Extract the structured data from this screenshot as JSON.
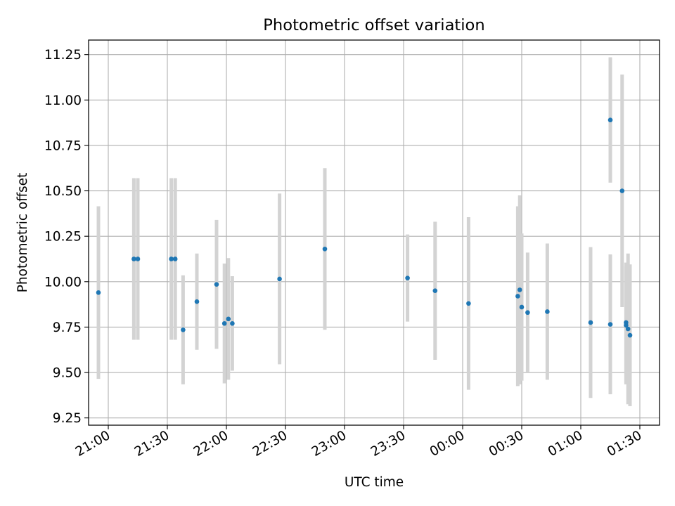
{
  "chart_data": {
    "type": "scatter",
    "title": "Photometric offset variation",
    "xlabel": "UTC time",
    "ylabel": "Photometric offset",
    "xlim": [
      "20:50",
      "01:40"
    ],
    "ylim": [
      9.21,
      11.33
    ],
    "x_ticks": [
      "21:00",
      "21:30",
      "22:00",
      "22:30",
      "23:00",
      "23:30",
      "00:00",
      "00:30",
      "01:00",
      "01:30"
    ],
    "y_ticks": [
      "9.25",
      "9.50",
      "9.75",
      "10.00",
      "10.25",
      "10.50",
      "10.75",
      "11.00",
      "11.25"
    ],
    "grid": true,
    "point_color": "#1f77b4",
    "errorbar_color": "#d3d3d3",
    "series": [
      {
        "points": [
          {
            "time": "20:55",
            "y": 9.94,
            "err": 0.475
          },
          {
            "time": "21:13",
            "y": 10.125,
            "err": 0.445
          },
          {
            "time": "21:15",
            "y": 10.125,
            "err": 0.445
          },
          {
            "time": "21:32",
            "y": 10.125,
            "err": 0.445
          },
          {
            "time": "21:34",
            "y": 10.125,
            "err": 0.445
          },
          {
            "time": "21:38",
            "y": 9.735,
            "err": 0.3
          },
          {
            "time": "21:45",
            "y": 9.89,
            "err": 0.265
          },
          {
            "time": "21:55",
            "y": 9.985,
            "err": 0.355
          },
          {
            "time": "21:59",
            "y": 9.77,
            "err": 0.33
          },
          {
            "time": "22:01",
            "y": 9.795,
            "err": 0.335
          },
          {
            "time": "22:03",
            "y": 9.77,
            "err": 0.26
          },
          {
            "time": "22:27",
            "y": 10.015,
            "err": 0.47
          },
          {
            "time": "22:50",
            "y": 10.18,
            "err": 0.445
          },
          {
            "time": "23:32",
            "y": 10.02,
            "err": 0.24
          },
          {
            "time": "23:46",
            "y": 9.95,
            "err": 0.38
          },
          {
            "time": "00:03",
            "y": 9.88,
            "err": 0.475
          },
          {
            "time": "00:28",
            "y": 9.92,
            "err": 0.495
          },
          {
            "time": "00:29",
            "y": 9.955,
            "err": 0.52
          },
          {
            "time": "00:30",
            "y": 9.86,
            "err": 0.405
          },
          {
            "time": "00:33",
            "y": 9.83,
            "err": 0.33
          },
          {
            "time": "00:43",
            "y": 9.835,
            "err": 0.375
          },
          {
            "time": "01:05",
            "y": 9.775,
            "err": 0.415
          },
          {
            "time": "01:15",
            "y": 10.89,
            "err": 0.345
          },
          {
            "time": "01:15",
            "y": 9.765,
            "err": 0.385
          },
          {
            "time": "01:21",
            "y": 10.5,
            "err": 0.64
          },
          {
            "time": "01:23",
            "y": 9.76,
            "err": 0.325
          },
          {
            "time": "01:23",
            "y": 9.775,
            "err": 0.33
          },
          {
            "time": "01:24",
            "y": 9.74,
            "err": 0.415
          },
          {
            "time": "01:25",
            "y": 9.705,
            "err": 0.39
          }
        ]
      }
    ]
  }
}
